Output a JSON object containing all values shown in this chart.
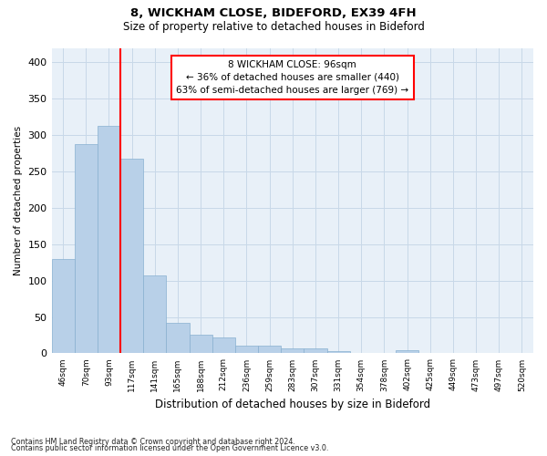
{
  "title1": "8, WICKHAM CLOSE, BIDEFORD, EX39 4FH",
  "title2": "Size of property relative to detached houses in Bideford",
  "xlabel": "Distribution of detached houses by size in Bideford",
  "ylabel": "Number of detached properties",
  "footnote1": "Contains HM Land Registry data © Crown copyright and database right 2024.",
  "footnote2": "Contains public sector information licensed under the Open Government Licence v3.0.",
  "categories": [
    "46sqm",
    "70sqm",
    "93sqm",
    "117sqm",
    "141sqm",
    "165sqm",
    "188sqm",
    "212sqm",
    "236sqm",
    "259sqm",
    "283sqm",
    "307sqm",
    "331sqm",
    "354sqm",
    "378sqm",
    "402sqm",
    "425sqm",
    "449sqm",
    "473sqm",
    "497sqm",
    "520sqm"
  ],
  "values": [
    130,
    288,
    313,
    268,
    107,
    42,
    25,
    22,
    10,
    10,
    7,
    7,
    3,
    0,
    0,
    4,
    0,
    0,
    0,
    0,
    0
  ],
  "bar_color": "#b8d0e8",
  "bar_edge_color": "#88b0d0",
  "grid_color": "#c8d8e8",
  "background_color": "#e8f0f8",
  "annotation_text_line1": "8 WICKHAM CLOSE: 96sqm",
  "annotation_text_line2": "← 36% of detached houses are smaller (440)",
  "annotation_text_line3": "63% of semi-detached houses are larger (769) →",
  "annotation_box_color": "white",
  "annotation_box_edge": "red",
  "red_line_color": "red",
  "ylim": [
    0,
    420
  ],
  "yticks": [
    0,
    50,
    100,
    150,
    200,
    250,
    300,
    350,
    400
  ]
}
